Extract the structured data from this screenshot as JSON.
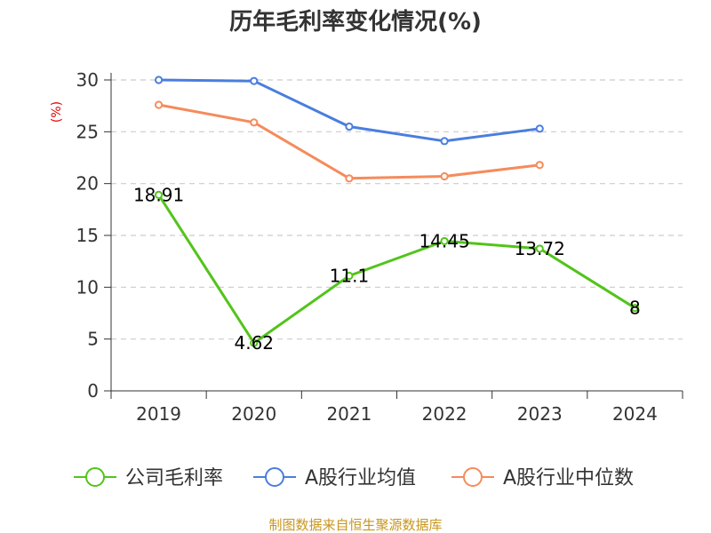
{
  "chart_data": {
    "type": "line",
    "title": "历年毛利率变化情况(%)",
    "ylabel": "(%)",
    "categories": [
      "2019",
      "2020",
      "2021",
      "2022",
      "2023",
      "2024"
    ],
    "ylim": [
      0,
      30
    ],
    "yticks": [
      0,
      5,
      10,
      15,
      20,
      25,
      30
    ],
    "grid": true,
    "legend_position": "bottom",
    "series": [
      {
        "name": "公司毛利率",
        "color": "#52c41a",
        "values": [
          18.91,
          4.62,
          11.1,
          14.45,
          13.72,
          8
        ],
        "labels": [
          "18.91",
          "4.62",
          "11.1",
          "14.45",
          "13.72",
          "8"
        ]
      },
      {
        "name": "A股行业均值",
        "color": "#4a7ede",
        "values": [
          30.0,
          29.9,
          25.5,
          24.1,
          25.3,
          null
        ]
      },
      {
        "name": "A股行业中位数",
        "color": "#f58b5c",
        "values": [
          27.6,
          25.9,
          20.5,
          20.7,
          21.8,
          null
        ]
      }
    ],
    "source": "制图数据来自恒生聚源数据库"
  }
}
